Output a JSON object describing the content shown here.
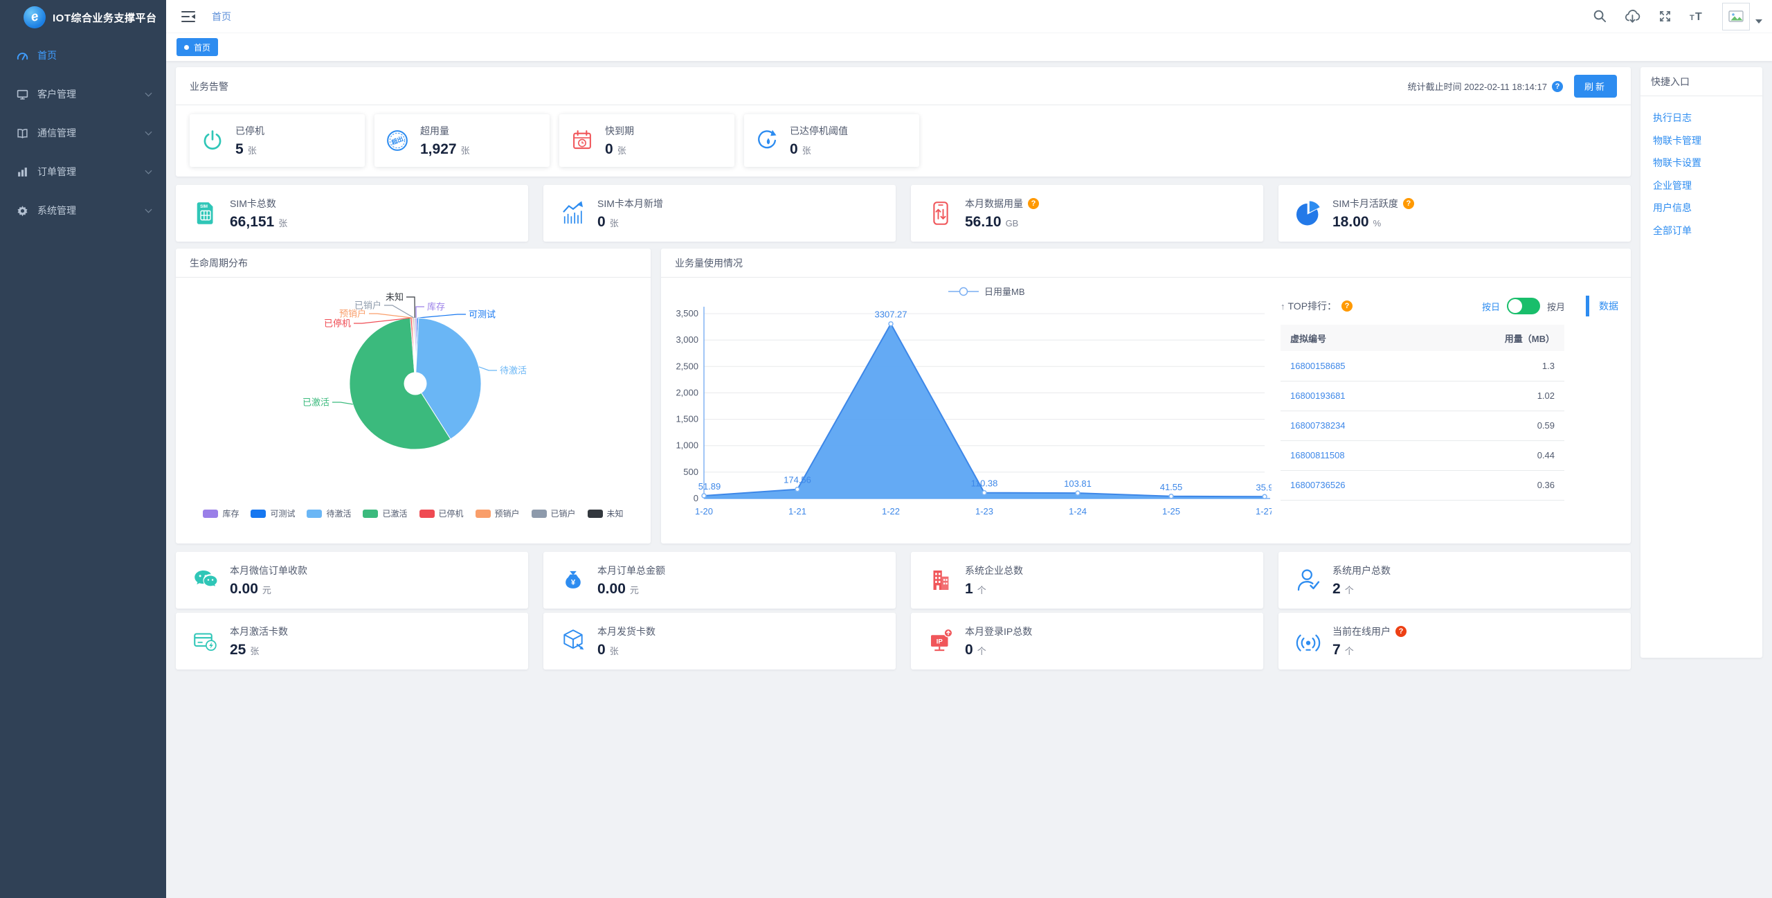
{
  "app": {
    "title": "IOT综合业务支撑平台"
  },
  "topbar": {
    "breadcrumb": "首页"
  },
  "tab": {
    "active_label": "首页"
  },
  "sidebar": {
    "items": [
      {
        "key": "home",
        "label": "首页",
        "icon": "dashboard",
        "active": true,
        "children": false
      },
      {
        "key": "customer",
        "label": "客户管理",
        "icon": "customer",
        "active": false,
        "children": true
      },
      {
        "key": "comm",
        "label": "通信管理",
        "icon": "comm",
        "active": false,
        "children": true
      },
      {
        "key": "order",
        "label": "订单管理",
        "icon": "order",
        "active": false,
        "children": true
      },
      {
        "key": "system",
        "label": "系统管理",
        "icon": "system",
        "active": false,
        "children": true
      }
    ]
  },
  "alerts": {
    "title": "业务告警",
    "stat_time_text": "统计截止时间 2022-02-11 18:14:17",
    "refresh_label": "刷新",
    "items": [
      {
        "label": "已停机",
        "value": "5",
        "unit": "张",
        "icon": "power"
      },
      {
        "label": "超用量",
        "value": "1,927",
        "unit": "张",
        "icon": "overuse"
      },
      {
        "label": "快到期",
        "value": "0",
        "unit": "张",
        "icon": "expire"
      },
      {
        "label": "已达停机阈值",
        "value": "0",
        "unit": "张",
        "icon": "threshold"
      }
    ]
  },
  "sim_stats": [
    {
      "label": "SIM卡总数",
      "value": "66,151",
      "unit": "张",
      "icon": "sim"
    },
    {
      "label": "SIM卡本月新增",
      "value": "0",
      "unit": "张",
      "icon": "trend"
    },
    {
      "label": "本月数据用量",
      "value": "56.10",
      "unit": "GB",
      "icon": "datausage",
      "help": "orange"
    },
    {
      "label": "SIM卡月活跃度",
      "value": "18.00",
      "unit": "%",
      "icon": "activity",
      "help": "orange"
    }
  ],
  "lifecycle": {
    "title": "生命周期分布"
  },
  "usage": {
    "title": "业务量使用情况"
  },
  "top_rank": {
    "arrow": "↑",
    "title": "TOP排行：",
    "toggle_left": "按日",
    "toggle_right": "按月",
    "data_label": "数据",
    "columns": [
      "虚拟编号",
      "用量（MB）"
    ],
    "rows": [
      [
        "16800158685",
        "1.3"
      ],
      [
        "16800193681",
        "1.02"
      ],
      [
        "16800738234",
        "0.59"
      ],
      [
        "16800811508",
        "0.44"
      ],
      [
        "16800736526",
        "0.36"
      ]
    ]
  },
  "bottom_stats_row1": [
    {
      "label": "本月微信订单收款",
      "value": "0.00",
      "unit": "元",
      "icon": "wechat"
    },
    {
      "label": "本月订单总金额",
      "value": "0.00",
      "unit": "元",
      "icon": "money"
    },
    {
      "label": "系统企业总数",
      "value": "1",
      "unit": "个",
      "icon": "building"
    },
    {
      "label": "系统用户总数",
      "value": "2",
      "unit": "个",
      "icon": "user"
    }
  ],
  "bottom_stats_row2": [
    {
      "label": "本月激活卡数",
      "value": "25",
      "unit": "张",
      "icon": "cardact"
    },
    {
      "label": "本月发货卡数",
      "value": "0",
      "unit": "张",
      "icon": "shipping"
    },
    {
      "label": "本月登录IP总数",
      "value": "0",
      "unit": "个",
      "icon": "ip"
    },
    {
      "label": "当前在线用户",
      "value": "7",
      "unit": "个",
      "icon": "online",
      "help": "red"
    }
  ],
  "quick_entry": {
    "title": "快捷入口",
    "links": [
      "执行日志",
      "物联卡管理",
      "物联卡设置",
      "企业管理",
      "用户信息",
      "全部订单"
    ]
  },
  "chart_data": [
    {
      "type": "pie",
      "title": "生命周期分布",
      "legend_position": "bottom",
      "slices": [
        {
          "name": "库存",
          "value": 0.4,
          "color": "#9a7fe8"
        },
        {
          "name": "可测试",
          "value": 0.4,
          "color": "#1677f0"
        },
        {
          "name": "待激活",
          "value": 40.2,
          "color": "#6ab6f5"
        },
        {
          "name": "已激活",
          "value": 57.8,
          "color": "#3bba7d"
        },
        {
          "name": "已停机",
          "value": 0.4,
          "color": "#ef4a52"
        },
        {
          "name": "预销户",
          "value": 0.3,
          "color": "#f99e6a"
        },
        {
          "name": "已销户",
          "value": 0.3,
          "color": "#8d9aab"
        },
        {
          "name": "未知",
          "value": 0.2,
          "color": "#33383e"
        }
      ]
    },
    {
      "type": "area",
      "series_name": "日用量MB",
      "x": [
        "1-20",
        "1-21",
        "1-22",
        "1-23",
        "1-24",
        "1-25",
        "1-27"
      ],
      "values": [
        51.89,
        174.56,
        3307.27,
        110.38,
        103.81,
        41.55,
        35.9
      ],
      "point_labels": [
        "51.89",
        "174.56",
        "3307.27",
        "110.38",
        "103.81",
        "41.55",
        "35.9"
      ],
      "ylim": [
        0,
        3500
      ],
      "ytick_step": 500,
      "grid": true,
      "legend_position": "top",
      "line_color": "#3d87e8",
      "fill_color": "#57a3f3"
    }
  ]
}
